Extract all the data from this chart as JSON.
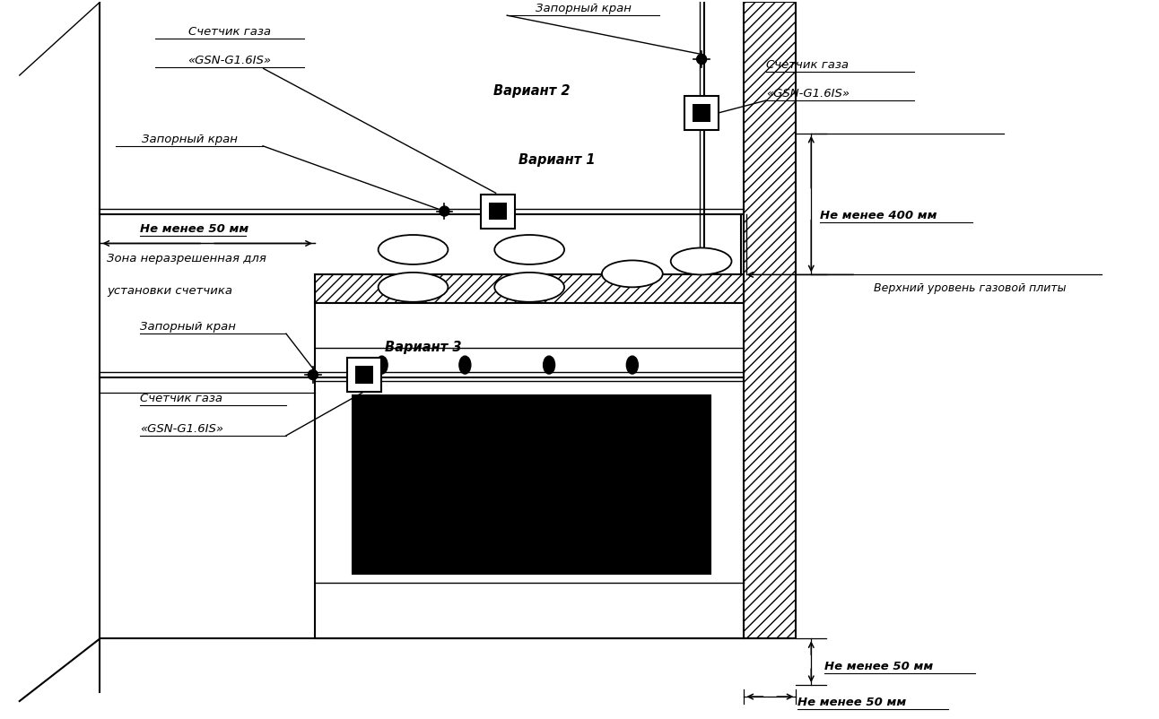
{
  "bg_color": "#ffffff",
  "line_color": "#000000",
  "labels": {
    "schetchik1_line1": "Счетчик газа",
    "schetchik1_line2": "«GSN-G1.6IS»",
    "zaporny1": "Запорный кран",
    "variant1": "Вариант 1",
    "zaporny2": "Запорный кран",
    "variant2": "Вариант 2",
    "schetchik2_line1": "Счетчик газа",
    "schetchik2_line2": "«GSN-G1.6IS»",
    "ne_menee_50_top": "Не менее 50 мм",
    "ne_menee_400": "Не менее 400 мм",
    "zona_line1": "Зона неразрешенная для",
    "zona_line2": "установки счетчика",
    "zaporny3": "Запорный кран",
    "variant3": "Вариант 3",
    "schetchik3_line1": "Счетчик газа",
    "schetchik3_line2": "«GSN-G1.6IS»",
    "verhny": "Верхний уровень газовой плиты",
    "ne_menee_50_vert": "Не менее 50 мм",
    "ne_menee_50_horiz": "Не менее 50 мм"
  }
}
